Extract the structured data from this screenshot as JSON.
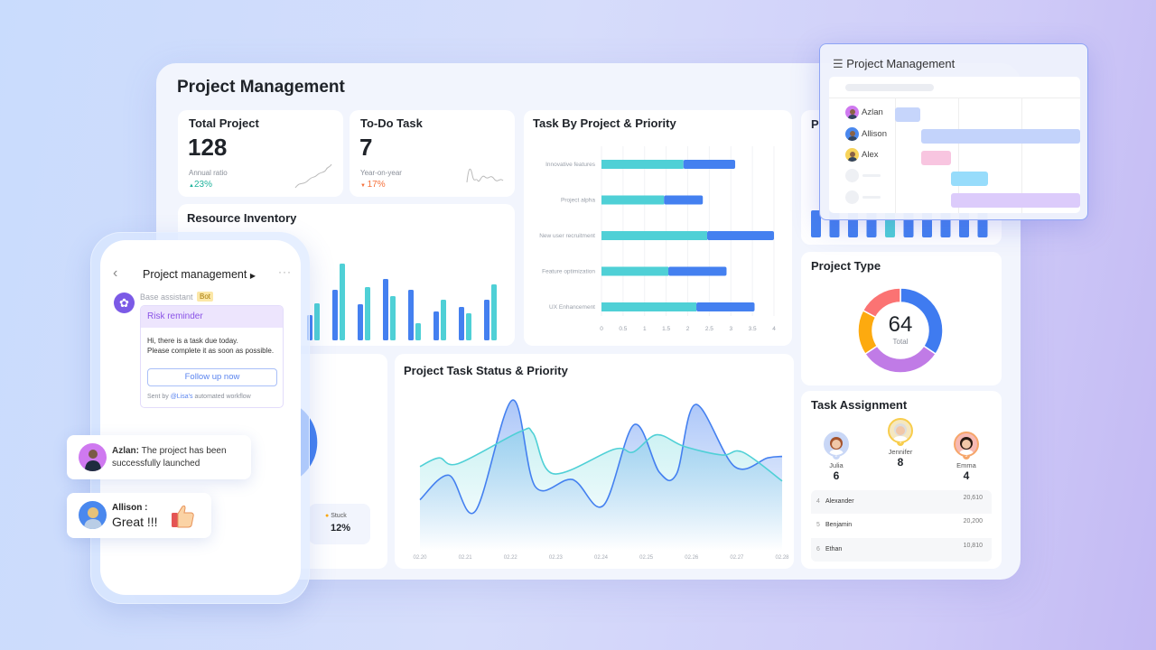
{
  "dashboard": {
    "title": "Project Management",
    "total_project": {
      "label": "Total Project",
      "value": "128",
      "sub_label": "Annual ratio",
      "change": "23%",
      "direction": "up"
    },
    "todo_task": {
      "label": "To-Do Task",
      "value": "7",
      "sub_label": "Year-on-year",
      "change": "17%",
      "direction": "down"
    },
    "resource_inventory": {
      "title": "Resource Inventory"
    },
    "hidden_card": {
      "title_visible": "P",
      "legend_label": "Stuck",
      "legend_value": "12%"
    },
    "project_type": {
      "title": "Project Type",
      "total": "64",
      "total_label": "Total"
    },
    "task_assignment": {
      "title": "Task Assignment",
      "podium": [
        {
          "rank": "2",
          "name": "Julia",
          "count": "6"
        },
        {
          "rank": "1",
          "name": "Jennifer",
          "count": "8"
        },
        {
          "rank": "3",
          "name": "Emma",
          "count": "4"
        }
      ],
      "rows": [
        {
          "rank": "4",
          "name": "Alexander",
          "value": "20,610"
        },
        {
          "rank": "5",
          "name": "Benjamin",
          "value": "20,200"
        },
        {
          "rank": "6",
          "name": "Ethan",
          "value": "10,810"
        }
      ]
    }
  },
  "gantt": {
    "title": "Project Management",
    "people": [
      "Azlan",
      "Allison",
      "Alex"
    ]
  },
  "phone": {
    "title": "Project management",
    "sender": "Base assistant",
    "badge": "Bot",
    "card_title": "Risk reminder",
    "message_line1": "Hi, there is a task due today.",
    "message_line2": "Please complete it as soon as possible.",
    "button": "Follow up now",
    "footer_prefix": "Sent by",
    "footer_mention": "@Lisa's",
    "footer_suffix": "automated workflow"
  },
  "chat": [
    {
      "name": "Azlan:",
      "text": "The project has been successfully launched"
    },
    {
      "name": "Allison :",
      "text": "Great !!!"
    }
  ],
  "colors": {
    "blue": "#4480f0",
    "teal": "#4fd0d6",
    "purple": "#c07be6",
    "orange": "#fdaa0f",
    "red": "#fb7373",
    "up": "#1fb39c",
    "down": "#f5703a"
  },
  "chart_data": [
    {
      "type": "bar",
      "orientation": "horizontal",
      "stacked": true,
      "title": "Task By Project & Priority",
      "categories": [
        "Innovative features",
        "Project alpha",
        "New user recruitment",
        "Feature optimization",
        "UX Enhancement"
      ],
      "series": [
        {
          "values": [
            1.9,
            1.45,
            2.45,
            1.55,
            2.2
          ],
          "color": "#4fd0d6"
        },
        {
          "values": [
            1.2,
            0.9,
            1.55,
            1.35,
            1.35
          ],
          "color": "#4480f0"
        }
      ],
      "xlim": [
        0,
        4
      ],
      "xticks": [
        "0",
        "0.5",
        "1",
        "1.5",
        "2",
        "2.5",
        "3",
        "3.5",
        "4"
      ],
      "grid": true
    },
    {
      "type": "bar",
      "title": "Resource Inventory",
      "series": [
        {
          "values": [
            28,
            56,
            40,
            68,
            56,
            32,
            37,
            45
          ],
          "color": "#4480f0"
        },
        {
          "values": [
            41,
            85,
            59,
            49,
            19,
            45,
            30,
            62
          ],
          "color": "#4fd0d6"
        }
      ]
    },
    {
      "type": "area",
      "title": "Project Task Status & Priority",
      "x_ticks": [
        "02.20",
        "02.21",
        "02.22",
        "02.23",
        "02.24",
        "02.25",
        "02.26",
        "02.27",
        "02.28"
      ],
      "xlim": [
        20,
        28
      ],
      "ylim": [
        0,
        100
      ],
      "series": [
        {
          "color": "#4480f0",
          "points": [
            [
              20,
              29
            ],
            [
              20.64,
              46
            ],
            [
              21.22,
              21
            ],
            [
              22.04,
              98
            ],
            [
              22.55,
              38
            ],
            [
              23.37,
              43
            ],
            [
              24.05,
              25
            ],
            [
              24.73,
              81
            ],
            [
              25.29,
              48
            ],
            [
              25.67,
              47
            ],
            [
              26.09,
              95
            ],
            [
              26.95,
              52
            ],
            [
              27.68,
              58
            ],
            [
              28,
              59
            ]
          ]
        },
        {
          "color": "#4fd0d6",
          "points": [
            [
              20,
              52
            ],
            [
              20.42,
              58
            ],
            [
              20.84,
              54
            ],
            [
              22.2,
              76
            ],
            [
              22.5,
              75
            ],
            [
              22.95,
              47
            ],
            [
              24.29,
              64
            ],
            [
              24.71,
              62
            ],
            [
              25.23,
              74
            ],
            [
              25.83,
              66
            ],
            [
              26.67,
              60
            ],
            [
              27.13,
              62
            ],
            [
              28,
              42
            ]
          ]
        }
      ]
    },
    {
      "type": "pie",
      "donut": true,
      "title": "Project Type",
      "values": [
        22,
        20,
        11,
        11
      ],
      "colors": [
        "#3f7bf0",
        "#c07be6",
        "#fdaa0f",
        "#fb7373"
      ]
    },
    {
      "type": "bar",
      "title": "P",
      "values": [
        1,
        1,
        1,
        1,
        1,
        1,
        1,
        1,
        1,
        1
      ],
      "highlight_index": 4
    }
  ]
}
